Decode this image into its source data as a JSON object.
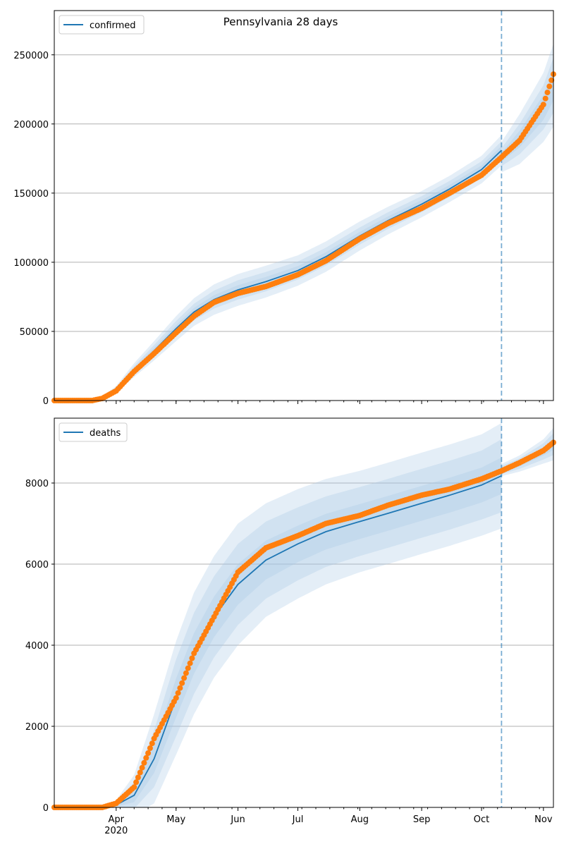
{
  "title": "Pennsylvania 28 days",
  "colors": {
    "line": "#1f77b4",
    "band": "#a6c8e6",
    "observed": "#ff7f0e",
    "forecast_marker": "#1f77b4",
    "grid": "#b0b0b0"
  },
  "chart_data": [
    {
      "type": "line",
      "legend": "confirmed",
      "legend_location": "top-left",
      "grid": "y",
      "xlim": [
        "2020-03-01",
        "2020-11-06"
      ],
      "ylim": [
        0,
        282000
      ],
      "yticks": [
        0,
        50000,
        100000,
        150000,
        200000,
        250000
      ],
      "month_ticks": [
        "2020-04-01",
        "2020-05-01",
        "2020-06-01",
        "2020-07-01",
        "2020-08-01",
        "2020-09-01",
        "2020-10-01",
        "2020-11-01"
      ],
      "forecast_start": "2020-10-11",
      "fit": {
        "x": [
          "2020-03-01",
          "2020-03-20",
          "2020-03-25",
          "2020-04-01",
          "2020-04-10",
          "2020-04-20",
          "2020-05-01",
          "2020-05-10",
          "2020-05-20",
          "2020-06-01",
          "2020-06-15",
          "2020-07-01",
          "2020-07-15",
          "2020-08-01",
          "2020-08-15",
          "2020-09-01",
          "2020-09-15",
          "2020-10-01",
          "2020-10-11",
          "2020-10-11",
          "2020-10-20",
          "2020-11-01",
          "2020-11-06"
        ],
        "y": [
          0,
          0,
          2000,
          8000,
          22000,
          36000,
          52000,
          64000,
          73000,
          80000,
          86000,
          94000,
          104000,
          119000,
          130000,
          142000,
          153000,
          167000,
          181000,
          176000,
          189000,
          212000,
          228000
        ]
      },
      "observed": {
        "x": [
          "2020-03-01",
          "2020-03-20",
          "2020-03-25",
          "2020-04-01",
          "2020-04-10",
          "2020-04-20",
          "2020-05-01",
          "2020-05-10",
          "2020-05-20",
          "2020-06-01",
          "2020-06-15",
          "2020-07-01",
          "2020-07-15",
          "2020-08-01",
          "2020-08-15",
          "2020-09-01",
          "2020-09-15",
          "2020-10-01",
          "2020-10-11",
          "2020-10-20",
          "2020-11-01",
          "2020-11-06"
        ],
        "y": [
          0,
          0,
          1500,
          7000,
          21000,
          34000,
          49000,
          61000,
          71000,
          77500,
          82500,
          91000,
          101000,
          117000,
          128000,
          139000,
          150000,
          163000,
          176000,
          188000,
          214000,
          236000
        ]
      },
      "bands": [
        {
          "spread": [
            0,
            0,
            1000,
            2500,
            5000,
            7000,
            9000,
            10000,
            11000,
            11500,
            11500,
            11000,
            11000,
            10500,
            10000,
            9500,
            9500,
            10000,
            11000,
            11000,
            18000,
            25000,
            30000
          ]
        },
        {
          "spread": [
            0,
            0,
            600,
            1500,
            3000,
            4200,
            5500,
            6000,
            6500,
            7000,
            7000,
            6500,
            6500,
            6200,
            6000,
            5800,
            5800,
            6000,
            6500,
            6500,
            11000,
            16000,
            20000
          ]
        },
        {
          "spread": [
            0,
            0,
            300,
            700,
            1500,
            2000,
            2500,
            3000,
            3200,
            3400,
            3400,
            3200,
            3200,
            3000,
            3000,
            2900,
            2900,
            3000,
            3200,
            3200,
            6000,
            9000,
            11000
          ]
        }
      ]
    },
    {
      "type": "line",
      "legend": "deaths",
      "legend_location": "top-left",
      "grid": "y",
      "xlim": [
        "2020-03-01",
        "2020-11-06"
      ],
      "ylim": [
        0,
        9600
      ],
      "yticks": [
        0,
        2000,
        4000,
        6000,
        8000
      ],
      "month_ticks": [
        "2020-04-01",
        "2020-05-01",
        "2020-06-01",
        "2020-07-01",
        "2020-08-01",
        "2020-09-01",
        "2020-10-01",
        "2020-11-01"
      ],
      "xtick_labels": [
        "Apr",
        "May",
        "Jun",
        "Jul",
        "Aug",
        "Sep",
        "Oct",
        "Nov"
      ],
      "year_label": "2020",
      "forecast_start": "2020-10-11",
      "fit": {
        "x": [
          "2020-03-01",
          "2020-03-25",
          "2020-04-01",
          "2020-04-10",
          "2020-04-20",
          "2020-05-01",
          "2020-05-10",
          "2020-05-20",
          "2020-06-01",
          "2020-06-15",
          "2020-07-01",
          "2020-07-15",
          "2020-08-01",
          "2020-08-15",
          "2020-09-01",
          "2020-09-15",
          "2020-10-01",
          "2020-10-11",
          "2020-10-11",
          "2020-10-20",
          "2020-11-01",
          "2020-11-06"
        ],
        "y": [
          0,
          0,
          60,
          300,
          1200,
          2700,
          3800,
          4700,
          5500,
          6100,
          6500,
          6800,
          7050,
          7250,
          7500,
          7700,
          7950,
          8180,
          8320,
          8480,
          8780,
          8960
        ]
      },
      "observed": {
        "x": [
          "2020-03-01",
          "2020-03-25",
          "2020-04-01",
          "2020-04-10",
          "2020-04-20",
          "2020-05-01",
          "2020-05-10",
          "2020-05-20",
          "2020-06-01",
          "2020-06-15",
          "2020-07-01",
          "2020-07-15",
          "2020-08-01",
          "2020-08-15",
          "2020-09-01",
          "2020-09-15",
          "2020-10-01",
          "2020-10-11",
          "2020-10-20",
          "2020-11-01",
          "2020-11-06"
        ],
        "y": [
          0,
          0,
          100,
          500,
          1700,
          2700,
          3800,
          4700,
          5800,
          6400,
          6700,
          7000,
          7200,
          7450,
          7700,
          7850,
          8100,
          8300,
          8500,
          8800,
          9000
        ]
      },
      "bands": [
        {
          "spread": [
            0,
            0,
            120,
            500,
            1100,
            1400,
            1500,
            1500,
            1500,
            1400,
            1350,
            1300,
            1250,
            1250,
            1250,
            1250,
            1250,
            1300,
            150,
            200,
            300,
            400
          ]
        },
        {
          "spread": [
            0,
            0,
            80,
            330,
            700,
            950,
            1000,
            1000,
            1000,
            950,
            900,
            870,
            850,
            850,
            850,
            850,
            850,
            900,
            100,
            130,
            200,
            270
          ]
        },
        {
          "spread": [
            0,
            0,
            40,
            170,
            350,
            480,
            500,
            500,
            500,
            480,
            450,
            440,
            430,
            430,
            430,
            430,
            430,
            450,
            50,
            70,
            100,
            140
          ]
        }
      ]
    }
  ]
}
